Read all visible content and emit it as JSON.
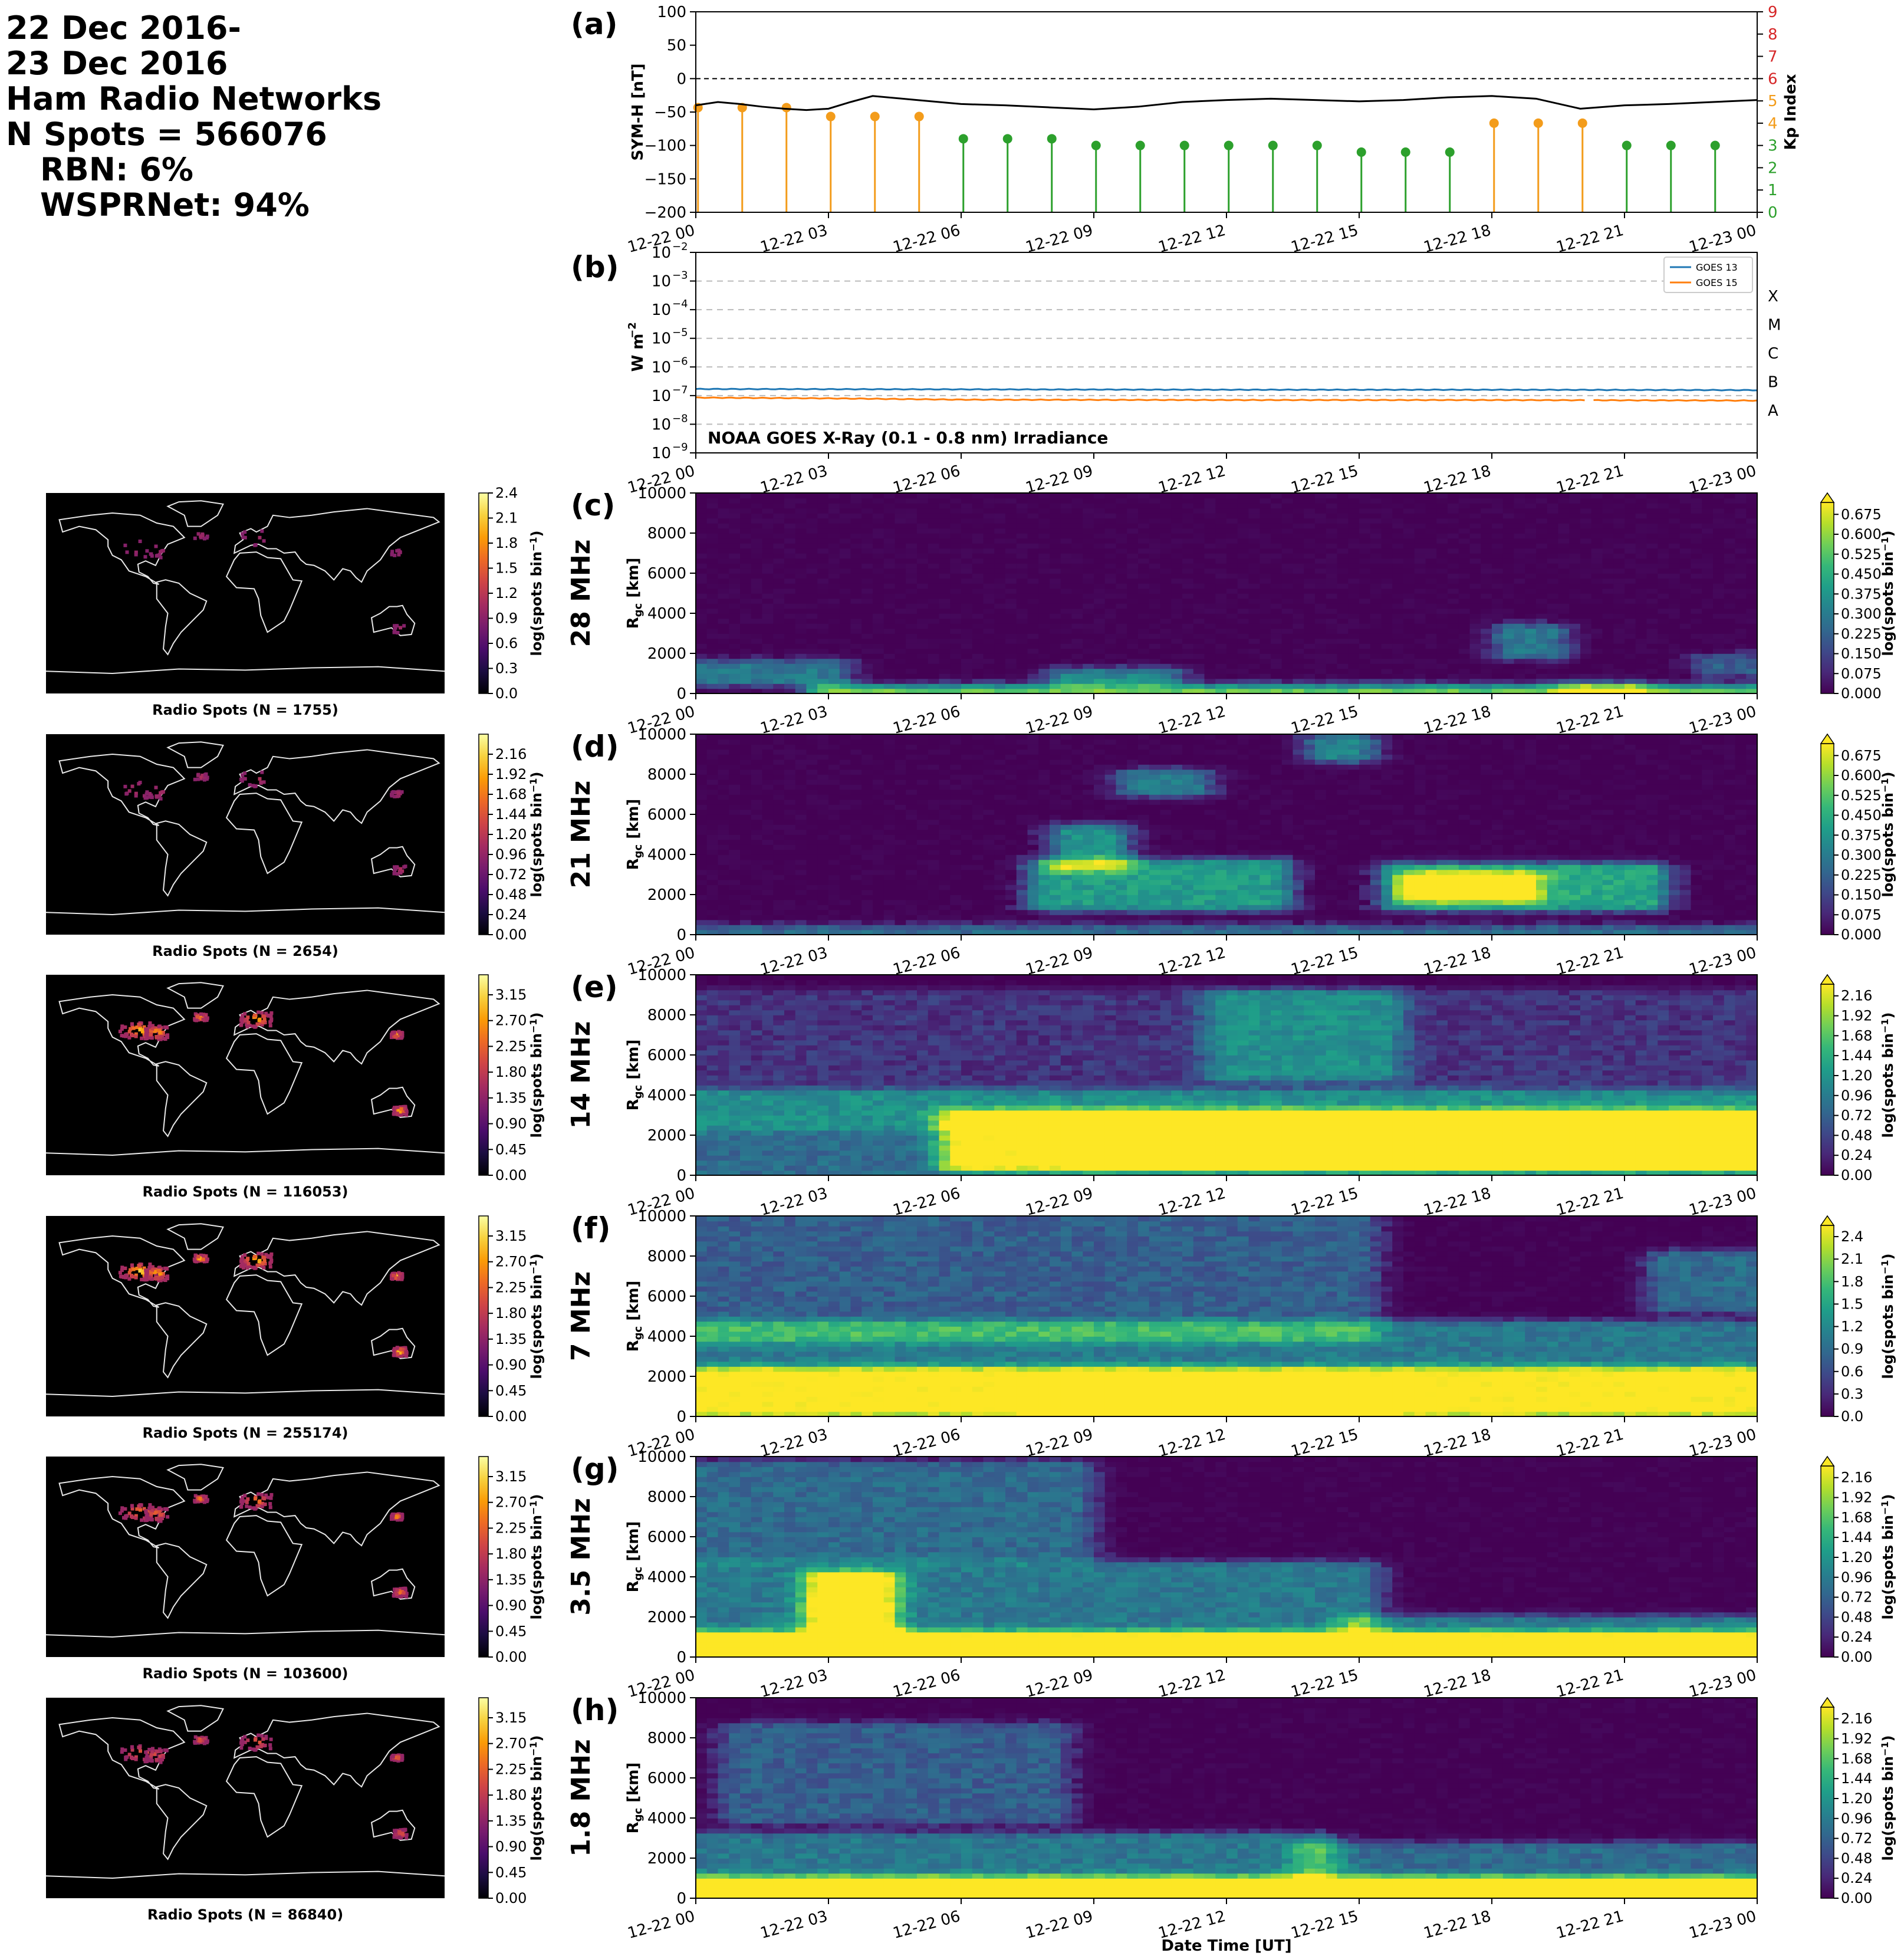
{
  "header": {
    "lines": [
      "22 Dec 2016-",
      "23 Dec 2016",
      "Ham Radio Networks",
      "N Spots = 566076"
    ],
    "sublines": [
      "RBN: 6%",
      "WSPRNet: 94%"
    ]
  },
  "colors": {
    "symh": "#000000",
    "kp_quiet": "#2ca02c",
    "kp_active": "#f39c1b",
    "kp_axis": "#d62728",
    "goes13": "#1f77b4",
    "goes15": "#ff7f0e"
  },
  "time_ticks": [
    "12-22 00",
    "12-22 03",
    "12-22 06",
    "12-22 09",
    "12-22 12",
    "12-22 15",
    "12-22 18",
    "12-22 21",
    "12-23 00"
  ],
  "xlabel": "Date Time [UT]",
  "chart_data": [
    {
      "id": "a",
      "panel_label": "(a)",
      "type": "line",
      "ylabel": "SYM-H [nT]",
      "y2label": "Kp Index",
      "ylim": [
        -200,
        100
      ],
      "yticks": [
        100,
        50,
        0,
        -50,
        -100,
        -150,
        -200
      ],
      "y2lim": [
        0,
        9
      ],
      "y2ticks": [
        0,
        1,
        2,
        3,
        4,
        5,
        6,
        7,
        8,
        9
      ],
      "xlim_hours": [
        0,
        24
      ],
      "symh_x_hours": [
        0,
        0.5,
        1,
        1.5,
        2,
        2.5,
        3,
        3.5,
        4,
        5,
        6,
        7,
        8,
        9,
        10,
        11,
        12,
        13,
        14,
        15,
        16,
        17,
        18,
        19,
        20,
        21,
        22,
        23,
        24
      ],
      "symh_values": [
        -40,
        -35,
        -38,
        -42,
        -45,
        -47,
        -45,
        -35,
        -26,
        -32,
        -38,
        -40,
        -43,
        -46,
        -42,
        -35,
        -32,
        -30,
        -32,
        -34,
        -32,
        -28,
        -26,
        -30,
        -45,
        -40,
        -38,
        -35,
        -32
      ],
      "kp_x_hours": [
        0,
        1,
        2,
        3,
        4,
        5,
        6,
        7,
        8,
        9,
        10,
        11,
        12,
        13,
        14,
        15,
        16,
        17,
        18,
        19,
        20,
        21,
        22,
        23
      ],
      "kp_values": [
        4.7,
        4.7,
        4.7,
        4.3,
        4.3,
        4.3,
        3.3,
        3.3,
        3.3,
        3,
        3,
        3,
        3,
        3,
        3,
        2.7,
        2.7,
        2.7,
        4,
        4,
        4,
        3,
        3,
        3
      ]
    },
    {
      "id": "b",
      "panel_label": "(b)",
      "type": "line",
      "ylabel": "W m",
      "ylabel_sup": "−2",
      "yscale": "log",
      "ylim_exp": [
        -9,
        -2
      ],
      "yticks_exp": [
        -9,
        -8,
        -7,
        -6,
        -5,
        -4,
        -3,
        -2
      ],
      "flare_classes": [
        {
          "name": "A",
          "exp": -7.5
        },
        {
          "name": "B",
          "exp": -6.5
        },
        {
          "name": "C",
          "exp": -5.5
        },
        {
          "name": "M",
          "exp": -4.5
        },
        {
          "name": "X",
          "exp": -3.5
        }
      ],
      "annotation": "NOAA GOES X-Ray (0.1 - 0.8 nm) Irradiance",
      "legend": "top-right",
      "series": [
        {
          "name": "GOES 13",
          "x_hours": [
            0,
            6,
            12,
            18,
            24
          ],
          "values": [
            1.7e-07,
            1.65e-07,
            1.6e-07,
            1.6e-07,
            1.55e-07
          ]
        },
        {
          "name": "GOES 15",
          "x_hours": [
            0,
            3,
            6,
            12,
            18,
            24
          ],
          "values": [
            8.5e-08,
            8e-08,
            7.2e-08,
            7e-08,
            7e-08,
            6.7e-08
          ]
        }
      ],
      "gap_hours": [
        20.1,
        20.3
      ]
    },
    {
      "id": "c",
      "panel_label": "(c)",
      "type": "heatmap",
      "band": "28 MHz",
      "ylabel": "R",
      "ylabel_sub": "gc",
      "ylabel_unit": " [km]",
      "yticks": [
        0,
        2000,
        4000,
        6000,
        8000,
        10000
      ],
      "cbar_label": "log(spots bin",
      "cbar_label_sup": "−1",
      "cbar_label_end": ")",
      "cbar_ticks": [
        "0.000",
        "0.075",
        "0.150",
        "0.225",
        "0.300",
        "0.375",
        "0.450",
        "0.525",
        "0.600",
        "0.675"
      ],
      "cbar_max": 0.72,
      "blobs": [
        [
          0.1,
          3,
          700,
          1400,
          0.4
        ],
        [
          3,
          24,
          0,
          150,
          0.75
        ],
        [
          8.5,
          10.5,
          700,
          1000,
          0.45
        ],
        [
          18.5,
          19.2,
          2000,
          3200,
          0.4
        ],
        [
          20,
          21,
          0,
          250,
          0.4
        ],
        [
          23,
          24,
          1200,
          1700,
          0.3
        ]
      ],
      "map_title": "Radio Spots (N = 1755)",
      "map_cbar_ticks": [
        "0.0",
        "0.3",
        "0.6",
        "0.9",
        "1.2",
        "1.5",
        "1.8",
        "2.1",
        "2.4"
      ],
      "map_cbar_max": 2.4
    },
    {
      "id": "d",
      "panel_label": "(d)",
      "type": "heatmap",
      "band": "21 MHz",
      "ylabel": "R",
      "ylabel_sub": "gc",
      "ylabel_unit": " [km]",
      "yticks": [
        0,
        2000,
        4000,
        6000,
        8000,
        10000
      ],
      "cbar_label": "log(spots bin",
      "cbar_label_sup": "−1",
      "cbar_label_end": ")",
      "cbar_ticks": [
        "0.000",
        "0.075",
        "0.150",
        "0.225",
        "0.300",
        "0.375",
        "0.450",
        "0.525",
        "0.600",
        "0.675"
      ],
      "cbar_max": 0.72,
      "blobs": [
        [
          0,
          24,
          0,
          200,
          0.35
        ],
        [
          8,
          13,
          1500,
          3500,
          0.55
        ],
        [
          8.5,
          9.3,
          3500,
          5200,
          0.5
        ],
        [
          10,
          11.2,
          7200,
          8000,
          0.4
        ],
        [
          14.3,
          14.9,
          8900,
          9700,
          0.45
        ],
        [
          16,
          21.5,
          1500,
          3300,
          0.6
        ],
        [
          16.5,
          18.5,
          2000,
          2800,
          0.75
        ]
      ],
      "map_title": "Radio Spots (N = 2654)",
      "map_cbar_ticks": [
        "0.00",
        "0.24",
        "0.48",
        "0.72",
        "0.96",
        "1.20",
        "1.44",
        "1.68",
        "1.92",
        "2.16"
      ],
      "map_cbar_max": 2.4
    },
    {
      "id": "e",
      "panel_label": "(e)",
      "type": "heatmap",
      "band": "14 MHz",
      "ylabel": "R",
      "ylabel_sub": "gc",
      "ylabel_unit": " [km]",
      "yticks": [
        0,
        2000,
        4000,
        6000,
        8000,
        10000
      ],
      "cbar_label": "log(spots bin",
      "cbar_label_sup": "−1",
      "cbar_label_end": ")",
      "cbar_ticks": [
        "0.00",
        "0.24",
        "0.48",
        "0.72",
        "0.96",
        "1.20",
        "1.44",
        "1.68",
        "1.92",
        "2.16"
      ],
      "cbar_max": 2.3,
      "blobs": [
        [
          0,
          24,
          0,
          4000,
          0.35
        ],
        [
          0,
          24,
          2500,
          9000,
          0.15
        ],
        [
          12,
          15.5,
          5000,
          9000,
          0.35
        ],
        [
          6,
          24,
          500,
          3000,
          0.7
        ],
        [
          9,
          24,
          800,
          2200,
          0.95
        ]
      ],
      "map_title": "Radio Spots (N = 116053)",
      "map_cbar_ticks": [
        "0.00",
        "0.45",
        "0.90",
        "1.35",
        "1.80",
        "2.25",
        "2.70",
        "3.15"
      ],
      "map_cbar_max": 3.5
    },
    {
      "id": "f",
      "panel_label": "(f)",
      "type": "heatmap",
      "band": "7 MHz",
      "ylabel": "R",
      "ylabel_sub": "gc",
      "ylabel_unit": " [km]",
      "yticks": [
        0,
        2000,
        4000,
        6000,
        8000,
        10000
      ],
      "cbar_label": "log(spots bin",
      "cbar_label_sup": "−1",
      "cbar_label_end": ")",
      "cbar_ticks": [
        "0.0",
        "0.3",
        "0.6",
        "0.9",
        "1.2",
        "1.5",
        "1.8",
        "2.1",
        "2.4"
      ],
      "cbar_max": 2.55,
      "blobs": [
        [
          0,
          24,
          0,
          4500,
          0.4
        ],
        [
          0,
          15,
          4000,
          10000,
          0.3
        ],
        [
          22,
          24,
          5500,
          8000,
          0.35
        ],
        [
          0,
          24,
          300,
          2200,
          0.65
        ],
        [
          8,
          15,
          300,
          1400,
          0.95
        ]
      ],
      "map_title": "Radio Spots (N = 255174)",
      "map_cbar_ticks": [
        "0.00",
        "0.45",
        "0.90",
        "1.35",
        "1.80",
        "2.25",
        "2.70",
        "3.15"
      ],
      "map_cbar_max": 3.5
    },
    {
      "id": "g",
      "panel_label": "(g)",
      "type": "heatmap",
      "band": "3.5 MHz",
      "ylabel": "R",
      "ylabel_sub": "gc",
      "ylabel_unit": " [km]",
      "yticks": [
        0,
        2000,
        4000,
        6000,
        8000,
        10000
      ],
      "cbar_label": "log(spots bin",
      "cbar_label_sup": "−1",
      "cbar_label_end": ")",
      "cbar_ticks": [
        "0.00",
        "0.24",
        "0.48",
        "0.72",
        "0.96",
        "1.20",
        "1.44",
        "1.68",
        "1.92",
        "2.16"
      ],
      "cbar_max": 2.3,
      "blobs": [
        [
          0,
          15,
          0,
          4500,
          0.4
        ],
        [
          0,
          8.5,
          5000,
          9500,
          0.35
        ],
        [
          15,
          24,
          0,
          1800,
          0.4
        ],
        [
          0,
          24,
          0,
          1000,
          0.75
        ],
        [
          3,
          4,
          0,
          4000,
          0.85
        ]
      ],
      "map_title": "Radio Spots (N = 103600)",
      "map_cbar_ticks": [
        "0.00",
        "0.45",
        "0.90",
        "1.35",
        "1.80",
        "2.25",
        "2.70",
        "3.15"
      ],
      "map_cbar_max": 3.5
    },
    {
      "id": "h",
      "panel_label": "(h)",
      "type": "heatmap",
      "band": "1.8 MHz",
      "ylabel": "R",
      "ylabel_sub": "gc",
      "ylabel_unit": " [km]",
      "yticks": [
        0,
        2000,
        4000,
        6000,
        8000,
        10000
      ],
      "cbar_label": "log(spots bin",
      "cbar_label_sup": "−1",
      "cbar_label_end": ")",
      "cbar_ticks": [
        "0.00",
        "0.24",
        "0.48",
        "0.72",
        "0.96",
        "1.20",
        "1.44",
        "1.68",
        "1.92",
        "2.16"
      ],
      "cbar_max": 2.3,
      "blobs": [
        [
          0,
          14,
          0,
          3000,
          0.4
        ],
        [
          1,
          8,
          4000,
          8500,
          0.3
        ],
        [
          14,
          24,
          0,
          2500,
          0.35
        ],
        [
          0,
          24,
          0,
          800,
          0.85
        ]
      ],
      "map_title": "Radio Spots (N = 86840)",
      "map_cbar_ticks": [
        "0.00",
        "0.45",
        "0.90",
        "1.35",
        "1.80",
        "2.25",
        "2.70",
        "3.15"
      ],
      "map_cbar_max": 3.5
    }
  ]
}
